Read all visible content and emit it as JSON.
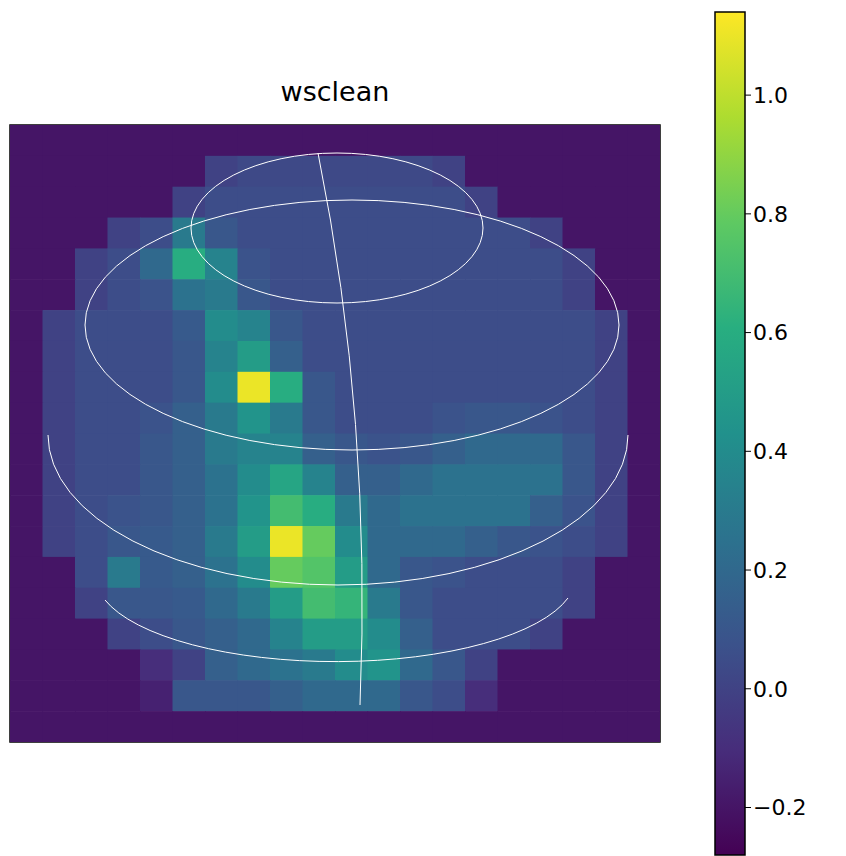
{
  "chart_data": {
    "type": "heatmap",
    "title": "wsclean",
    "tick_labels": false,
    "color": "viridis",
    "cells": [
      [
        -0.2,
        -0.2,
        -0.2,
        -0.2,
        -0.2,
        -0.2,
        -0.2,
        -0.2,
        -0.2,
        -0.2,
        -0.2,
        -0.2,
        -0.2,
        -0.2,
        -0.2,
        -0.2,
        -0.2,
        -0.2,
        -0.2,
        -0.2
      ],
      [
        -0.2,
        -0.2,
        -0.2,
        -0.2,
        -0.2,
        -0.2,
        0.0,
        0.03,
        0.03,
        0.03,
        0.03,
        0.03,
        0.03,
        0.0,
        -0.2,
        -0.2,
        -0.2,
        -0.2,
        -0.2,
        -0.2
      ],
      [
        -0.2,
        -0.2,
        -0.2,
        -0.2,
        -0.2,
        0.0,
        0.05,
        0.05,
        0.05,
        0.05,
        0.05,
        0.05,
        0.05,
        0.05,
        0.0,
        -0.2,
        -0.2,
        -0.2,
        -0.2,
        -0.2
      ],
      [
        -0.2,
        -0.2,
        -0.2,
        0.0,
        0.05,
        0.3,
        0.1,
        0.05,
        0.05,
        0.05,
        0.05,
        0.05,
        0.05,
        0.05,
        0.05,
        0.05,
        0.0,
        -0.2,
        -0.2,
        -0.2
      ],
      [
        -0.2,
        -0.2,
        0.0,
        0.05,
        0.2,
        0.6,
        0.35,
        0.08,
        0.05,
        0.05,
        0.05,
        0.05,
        0.05,
        0.05,
        0.05,
        0.05,
        0.05,
        0.0,
        -0.2,
        -0.2
      ],
      [
        -0.2,
        -0.2,
        0.0,
        0.05,
        0.08,
        0.25,
        0.3,
        0.1,
        0.05,
        0.05,
        0.05,
        0.05,
        0.05,
        0.05,
        0.05,
        0.05,
        0.05,
        0.0,
        -0.2,
        -0.2
      ],
      [
        -0.2,
        0.0,
        0.05,
        0.05,
        0.05,
        0.12,
        0.4,
        0.35,
        0.1,
        0.05,
        0.05,
        0.05,
        0.05,
        0.05,
        0.05,
        0.05,
        0.05,
        0.05,
        0.0,
        -0.2
      ],
      [
        -0.2,
        0.0,
        0.05,
        0.05,
        0.05,
        0.1,
        0.35,
        0.5,
        0.15,
        0.05,
        0.05,
        0.05,
        0.05,
        0.05,
        0.05,
        0.05,
        0.05,
        0.05,
        0.0,
        -0.2
      ],
      [
        -0.2,
        0.0,
        0.05,
        0.05,
        0.05,
        0.1,
        0.4,
        1.1,
        0.6,
        0.1,
        0.05,
        0.05,
        0.05,
        0.05,
        0.05,
        0.05,
        0.05,
        0.05,
        0.0,
        -0.2
      ],
      [
        -0.2,
        0.0,
        0.05,
        0.05,
        0.08,
        0.15,
        0.3,
        0.45,
        0.3,
        0.1,
        0.05,
        0.05,
        0.05,
        0.08,
        0.1,
        0.1,
        0.08,
        0.05,
        0.0,
        -0.2
      ],
      [
        -0.2,
        0.0,
        0.05,
        0.05,
        0.1,
        0.15,
        0.3,
        0.35,
        0.35,
        0.15,
        0.1,
        0.08,
        0.1,
        0.15,
        0.2,
        0.2,
        0.2,
        0.1,
        0.0,
        -0.2
      ],
      [
        -0.2,
        0.0,
        0.05,
        0.05,
        0.1,
        0.15,
        0.25,
        0.4,
        0.55,
        0.35,
        0.15,
        0.15,
        0.2,
        0.25,
        0.25,
        0.25,
        0.25,
        0.1,
        0.0,
        -0.2
      ],
      [
        -0.2,
        0.0,
        0.05,
        0.08,
        0.1,
        0.15,
        0.25,
        0.45,
        0.7,
        0.6,
        0.3,
        0.2,
        0.25,
        0.25,
        0.25,
        0.25,
        0.15,
        0.08,
        0.0,
        -0.2
      ],
      [
        -0.2,
        0.0,
        0.05,
        0.1,
        0.12,
        0.15,
        0.3,
        0.5,
        1.1,
        0.8,
        0.4,
        0.2,
        0.2,
        0.2,
        0.15,
        0.1,
        0.08,
        0.05,
        0.0,
        -0.2
      ],
      [
        -0.2,
        -0.2,
        0.05,
        0.3,
        0.12,
        0.15,
        0.25,
        0.4,
        0.8,
        0.75,
        0.5,
        0.2,
        0.1,
        0.08,
        0.05,
        0.05,
        0.05,
        0.0,
        -0.2,
        -0.2
      ],
      [
        -0.2,
        -0.2,
        0.0,
        0.1,
        0.1,
        0.12,
        0.2,
        0.3,
        0.5,
        0.7,
        0.65,
        0.3,
        0.1,
        0.05,
        0.05,
        0.05,
        0.05,
        0.0,
        -0.2,
        -0.2
      ],
      [
        -0.2,
        -0.2,
        -0.2,
        0.0,
        0.05,
        0.1,
        0.15,
        0.2,
        0.35,
        0.5,
        0.5,
        0.4,
        0.15,
        0.05,
        0.05,
        0.05,
        0.0,
        -0.2,
        -0.2,
        -0.2
      ],
      [
        -0.2,
        -0.2,
        -0.2,
        -0.2,
        -0.1,
        0.0,
        0.15,
        0.2,
        0.25,
        0.3,
        0.4,
        0.45,
        0.2,
        0.1,
        0.0,
        -0.2,
        -0.2,
        -0.2,
        -0.2,
        -0.2
      ],
      [
        -0.2,
        -0.2,
        -0.2,
        -0.2,
        -0.15,
        0.1,
        0.1,
        0.1,
        0.15,
        0.2,
        0.2,
        0.2,
        0.1,
        0.05,
        -0.1,
        -0.2,
        -0.2,
        -0.2,
        -0.2,
        -0.2
      ],
      [
        -0.2,
        -0.2,
        -0.2,
        -0.2,
        -0.2,
        -0.2,
        -0.2,
        -0.2,
        -0.2,
        -0.2,
        -0.2,
        -0.2,
        -0.2,
        -0.2,
        -0.2,
        -0.2,
        -0.2,
        -0.2,
        -0.2,
        -0.2
      ]
    ],
    "color_range": [
      -0.28,
      1.14
    ],
    "color_ticks": [
      {
        "value": -0.2,
        "label": "−0.2"
      },
      {
        "value": 0.0,
        "label": "0.0"
      },
      {
        "value": 0.2,
        "label": "0.2"
      },
      {
        "value": 0.4,
        "label": "0.4"
      },
      {
        "value": 0.6,
        "label": "0.6"
      },
      {
        "value": 0.8,
        "label": "0.8"
      },
      {
        "value": 1.0,
        "label": "1.0"
      }
    ]
  }
}
